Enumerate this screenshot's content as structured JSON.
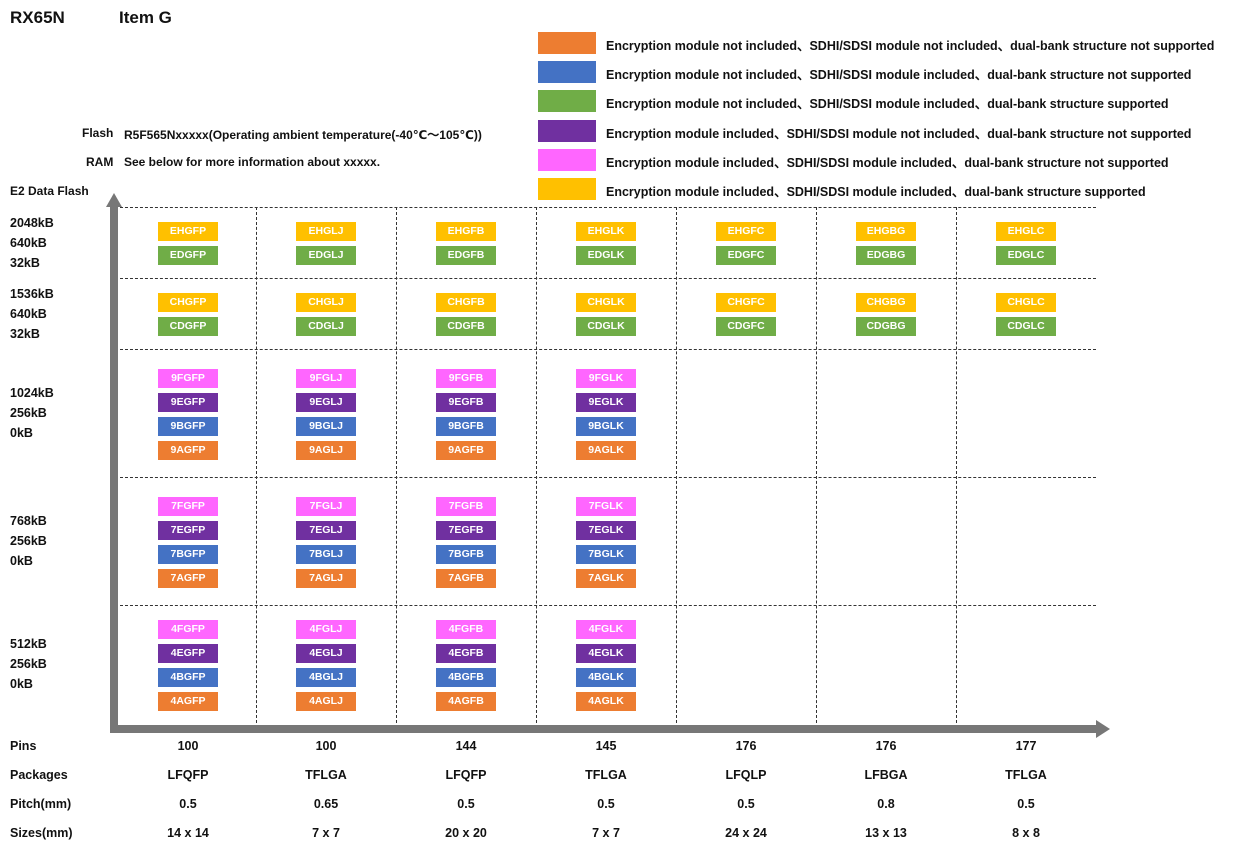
{
  "header": {
    "device": "RX65N",
    "item": "Item G"
  },
  "info": {
    "flash_label": "Flash",
    "flash_text": "R5F565Nxxxxx(Operating ambient temperature(-40℃～105℃))",
    "ram_label": "RAM",
    "ram_text": "See below for more information about xxxxx."
  },
  "colors": {
    "orange": "#ED7D31",
    "blue": "#4472C4",
    "green": "#70AD47",
    "purple": "#7030A0",
    "pink": "#FF66FF",
    "yellow": "#FFC000",
    "axis": "#777777"
  },
  "legend": [
    {
      "color": "#ED7D31",
      "text": "Encryption module not included、SDHI/SDSI module not included、dual-bank structure not supported"
    },
    {
      "color": "#4472C4",
      "text": "Encryption module not included、SDHI/SDSI module included、dual-bank structure not supported"
    },
    {
      "color": "#70AD47",
      "text": "Encryption module not included、SDHI/SDSI module included、dual-bank structure supported"
    },
    {
      "color": "#7030A0",
      "text": "Encryption module included、SDHI/SDSI module not included、dual-bank structure not supported"
    },
    {
      "color": "#FF66FF",
      "text": "Encryption module included、SDHI/SDSI module included、dual-bank structure not supported"
    },
    {
      "color": "#FFC000",
      "text": "Encryption module included、SDHI/SDSI module included、dual-bank structure supported"
    }
  ],
  "y_axis_title": "E2 Data Flash",
  "rows": [
    {
      "memory": [
        "2048kB",
        "640kB",
        "32kB"
      ]
    },
    {
      "memory": [
        "1536kB",
        "640kB",
        "32kB"
      ]
    },
    {
      "memory": [
        "1024kB",
        "256kB",
        "0kB"
      ]
    },
    {
      "memory": [
        "768kB",
        "256kB",
        "0kB"
      ]
    },
    {
      "memory": [
        "512kB",
        "256kB",
        "0kB"
      ]
    }
  ],
  "columns": [
    {
      "pins": "100",
      "package": "LFQFP",
      "pitch": "0.5",
      "size": "14 x 14"
    },
    {
      "pins": "100",
      "package": "TFLGA",
      "pitch": "0.65",
      "size": "7 x 7"
    },
    {
      "pins": "144",
      "package": "LFQFP",
      "pitch": "0.5",
      "size": "20 x 20"
    },
    {
      "pins": "145",
      "package": "TFLGA",
      "pitch": "0.5",
      "size": "7 x 7"
    },
    {
      "pins": "176",
      "package": "LFQLP",
      "pitch": "0.5",
      "size": "24 x 24"
    },
    {
      "pins": "176",
      "package": "LFBGA",
      "pitch": "0.8",
      "size": "13 x 13"
    },
    {
      "pins": "177",
      "package": "TFLGA",
      "pitch": "0.5",
      "size": "8 x 8"
    }
  ],
  "bottom_labels": {
    "pins": "Pins",
    "packages": "Packages",
    "pitch": "Pitch(mm)",
    "sizes": "Sizes(mm)"
  },
  "chips": [
    [
      [
        {
          "code": "EHGFP",
          "color": "yellow"
        },
        {
          "code": "EDGFP",
          "color": "green"
        }
      ],
      [
        {
          "code": "EHGLJ",
          "color": "yellow"
        },
        {
          "code": "EDGLJ",
          "color": "green"
        }
      ],
      [
        {
          "code": "EHGFB",
          "color": "yellow"
        },
        {
          "code": "EDGFB",
          "color": "green"
        }
      ],
      [
        {
          "code": "EHGLK",
          "color": "yellow"
        },
        {
          "code": "EDGLK",
          "color": "green"
        }
      ],
      [
        {
          "code": "EHGFC",
          "color": "yellow"
        },
        {
          "code": "EDGFC",
          "color": "green"
        }
      ],
      [
        {
          "code": "EHGBG",
          "color": "yellow"
        },
        {
          "code": "EDGBG",
          "color": "green"
        }
      ],
      [
        {
          "code": "EHGLC",
          "color": "yellow"
        },
        {
          "code": "EDGLC",
          "color": "green"
        }
      ]
    ],
    [
      [
        {
          "code": "CHGFP",
          "color": "yellow"
        },
        {
          "code": "CDGFP",
          "color": "green"
        }
      ],
      [
        {
          "code": "CHGLJ",
          "color": "yellow"
        },
        {
          "code": "CDGLJ",
          "color": "green"
        }
      ],
      [
        {
          "code": "CHGFB",
          "color": "yellow"
        },
        {
          "code": "CDGFB",
          "color": "green"
        }
      ],
      [
        {
          "code": "CHGLK",
          "color": "yellow"
        },
        {
          "code": "CDGLK",
          "color": "green"
        }
      ],
      [
        {
          "code": "CHGFC",
          "color": "yellow"
        },
        {
          "code": "CDGFC",
          "color": "green"
        }
      ],
      [
        {
          "code": "CHGBG",
          "color": "yellow"
        },
        {
          "code": "CDGBG",
          "color": "green"
        }
      ],
      [
        {
          "code": "CHGLC",
          "color": "yellow"
        },
        {
          "code": "CDGLC",
          "color": "green"
        }
      ]
    ],
    [
      [
        {
          "code": "9FGFP",
          "color": "pink"
        },
        {
          "code": "9EGFP",
          "color": "purple"
        },
        {
          "code": "9BGFP",
          "color": "blue"
        },
        {
          "code": "9AGFP",
          "color": "orange"
        }
      ],
      [
        {
          "code": "9FGLJ",
          "color": "pink"
        },
        {
          "code": "9EGLJ",
          "color": "purple"
        },
        {
          "code": "9BGLJ",
          "color": "blue"
        },
        {
          "code": "9AGLJ",
          "color": "orange"
        }
      ],
      [
        {
          "code": "9FGFB",
          "color": "pink"
        },
        {
          "code": "9EGFB",
          "color": "purple"
        },
        {
          "code": "9BGFB",
          "color": "blue"
        },
        {
          "code": "9AGFB",
          "color": "orange"
        }
      ],
      [
        {
          "code": "9FGLK",
          "color": "pink"
        },
        {
          "code": "9EGLK",
          "color": "purple"
        },
        {
          "code": "9BGLK",
          "color": "blue"
        },
        {
          "code": "9AGLK",
          "color": "orange"
        }
      ],
      [],
      [],
      []
    ],
    [
      [
        {
          "code": "7FGFP",
          "color": "pink"
        },
        {
          "code": "7EGFP",
          "color": "purple"
        },
        {
          "code": "7BGFP",
          "color": "blue"
        },
        {
          "code": "7AGFP",
          "color": "orange"
        }
      ],
      [
        {
          "code": "7FGLJ",
          "color": "pink"
        },
        {
          "code": "7EGLJ",
          "color": "purple"
        },
        {
          "code": "7BGLJ",
          "color": "blue"
        },
        {
          "code": "7AGLJ",
          "color": "orange"
        }
      ],
      [
        {
          "code": "7FGFB",
          "color": "pink"
        },
        {
          "code": "7EGFB",
          "color": "purple"
        },
        {
          "code": "7BGFB",
          "color": "blue"
        },
        {
          "code": "7AGFB",
          "color": "orange"
        }
      ],
      [
        {
          "code": "7FGLK",
          "color": "pink"
        },
        {
          "code": "7EGLK",
          "color": "purple"
        },
        {
          "code": "7BGLK",
          "color": "blue"
        },
        {
          "code": "7AGLK",
          "color": "orange"
        }
      ],
      [],
      [],
      []
    ],
    [
      [
        {
          "code": "4FGFP",
          "color": "pink"
        },
        {
          "code": "4EGFP",
          "color": "purple"
        },
        {
          "code": "4BGFP",
          "color": "blue"
        },
        {
          "code": "4AGFP",
          "color": "orange"
        }
      ],
      [
        {
          "code": "4FGLJ",
          "color": "pink"
        },
        {
          "code": "4EGLJ",
          "color": "purple"
        },
        {
          "code": "4BGLJ",
          "color": "blue"
        },
        {
          "code": "4AGLJ",
          "color": "orange"
        }
      ],
      [
        {
          "code": "4FGFB",
          "color": "pink"
        },
        {
          "code": "4EGFB",
          "color": "purple"
        },
        {
          "code": "4BGFB",
          "color": "blue"
        },
        {
          "code": "4AGFB",
          "color": "orange"
        }
      ],
      [
        {
          "code": "4FGLK",
          "color": "pink"
        },
        {
          "code": "4EGLK",
          "color": "purple"
        },
        {
          "code": "4BGLK",
          "color": "blue"
        },
        {
          "code": "4AGLK",
          "color": "orange"
        }
      ],
      [],
      [],
      []
    ]
  ]
}
